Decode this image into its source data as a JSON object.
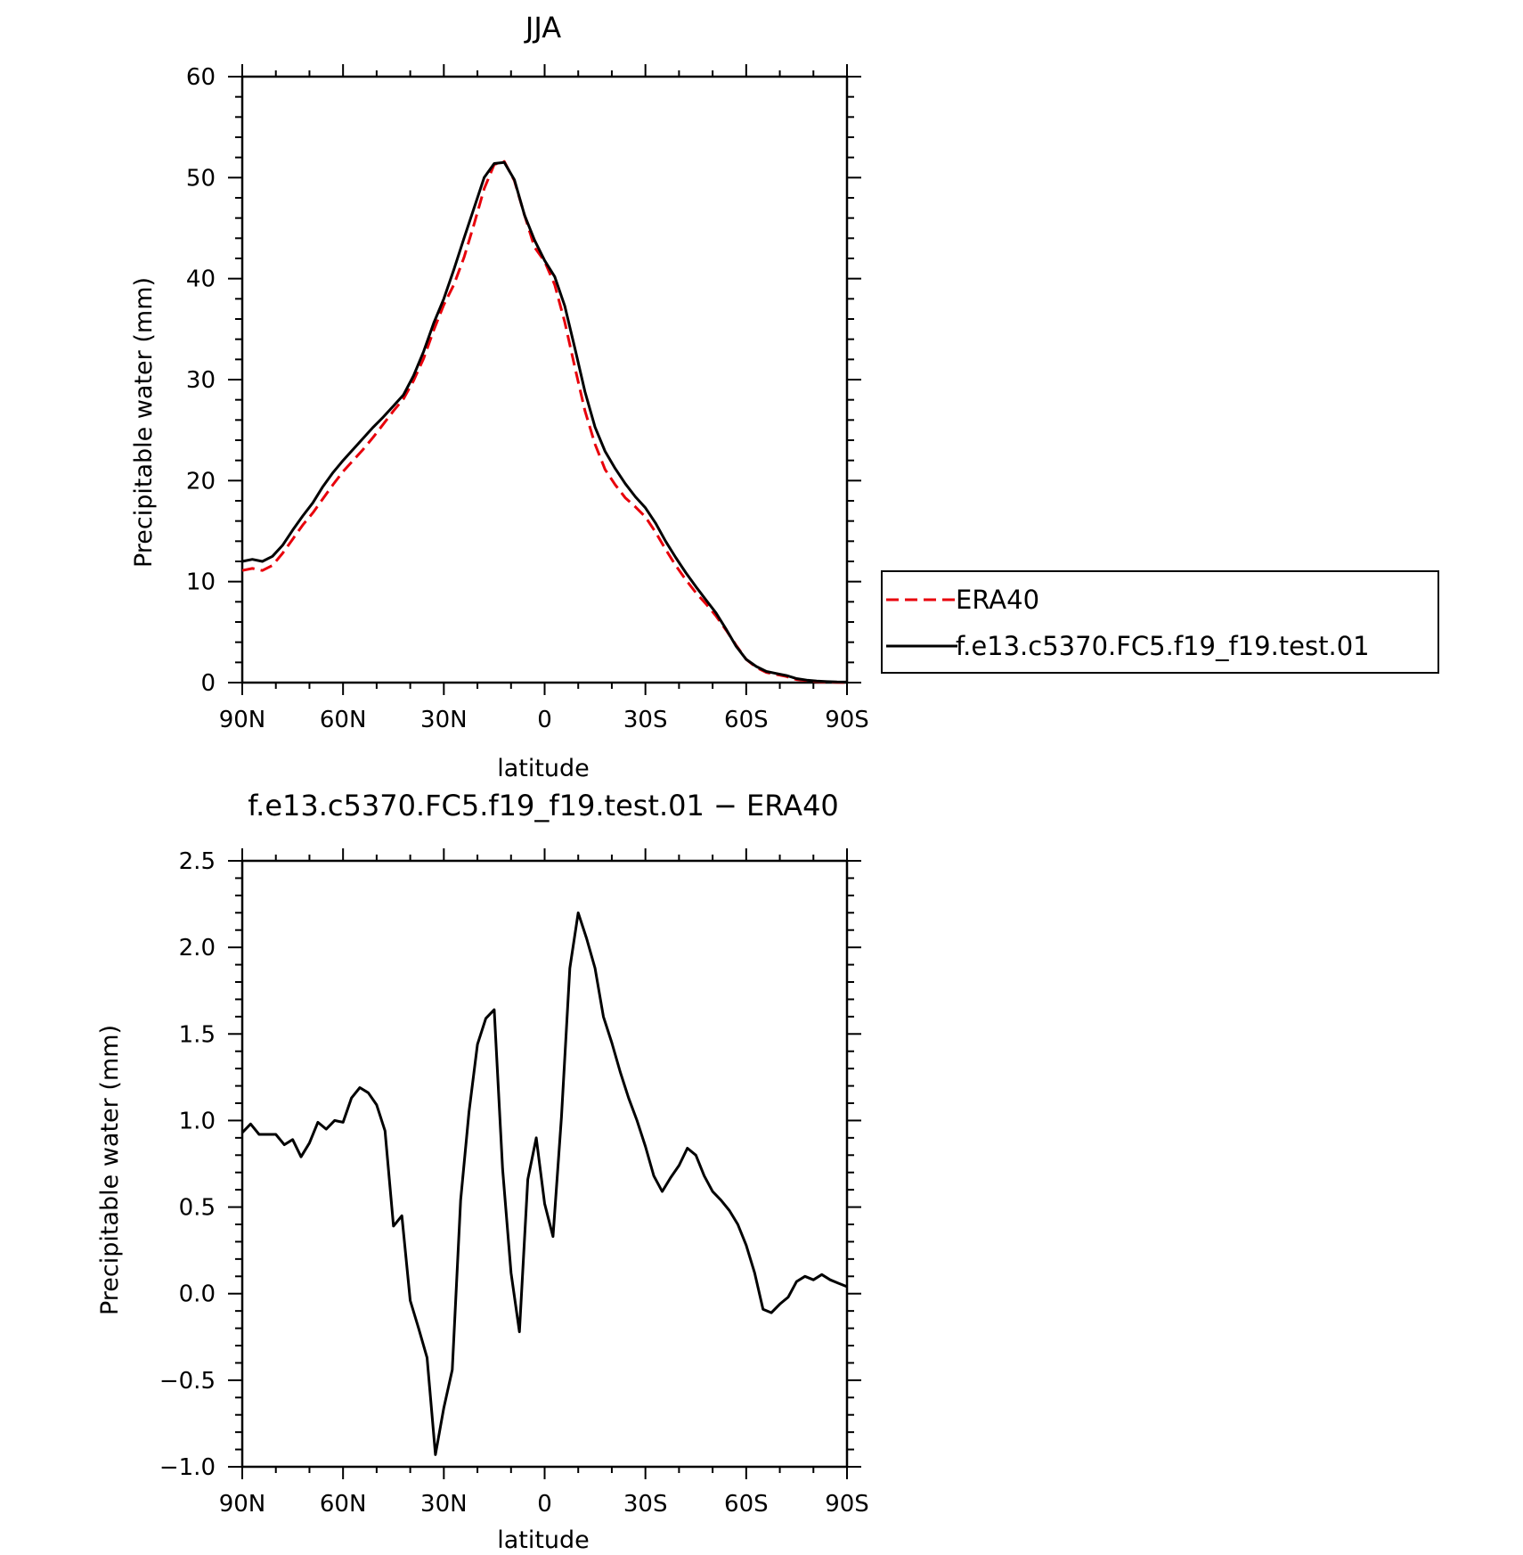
{
  "chart_data": [
    {
      "type": "line",
      "title": "JJA",
      "xlabel": "latitude",
      "ylabel": "Precipitable water (mm)",
      "xlim": [
        90,
        -90
      ],
      "ylim": [
        0,
        60
      ],
      "xticks": [
        90,
        60,
        30,
        0,
        -30,
        -60,
        -90
      ],
      "xtick_labels": [
        "90N",
        "60N",
        "30N",
        "0",
        "30S",
        "60S",
        "90S"
      ],
      "yticks": [
        0,
        10,
        20,
        30,
        40,
        50,
        60
      ],
      "ytick_labels": [
        "0",
        "10",
        "20",
        "30",
        "40",
        "50",
        "60"
      ],
      "grid": false,
      "legend_position": "right",
      "series": [
        {
          "name": "ERA40",
          "color": "#e8000b",
          "dash": "dashed",
          "x": [
            90,
            87,
            84,
            81,
            78,
            75,
            72,
            69,
            66,
            63,
            60,
            57,
            54,
            51,
            48,
            45,
            42,
            39,
            36,
            33,
            30,
            27,
            24,
            21,
            18,
            15,
            12,
            9,
            6,
            3,
            0,
            -3,
            -6,
            -9,
            -12,
            -15,
            -18,
            -21,
            -24,
            -27,
            -30,
            -33,
            -36,
            -39,
            -42,
            -45,
            -48,
            -51,
            -54,
            -57,
            -60,
            -63,
            -66,
            -69,
            -72,
            -75,
            -78,
            -81,
            -84,
            -87,
            -90
          ],
          "y": [
            11.1,
            11.3,
            11.1,
            11.6,
            12.8,
            14.2,
            15.6,
            16.8,
            18.2,
            19.6,
            20.9,
            22.0,
            23.1,
            24.3,
            25.6,
            26.9,
            28.1,
            29.9,
            32.1,
            34.9,
            37.4,
            39.4,
            42.1,
            45.4,
            48.9,
            51.3,
            51.6,
            49.7,
            46.3,
            43.1,
            41.7,
            39.4,
            35.7,
            31.2,
            26.9,
            23.6,
            21.1,
            19.6,
            18.3,
            17.4,
            16.4,
            14.9,
            13.2,
            11.6,
            10.2,
            8.9,
            7.8,
            6.6,
            5.2,
            3.7,
            2.3,
            1.5,
            1.0,
            0.8,
            0.6,
            0.3,
            0.2,
            0.1,
            0.05,
            0.03,
            0.01
          ]
        },
        {
          "name": "f.e13.c5370.FC5.f19_f19.test.01",
          "color": "#000000",
          "dash": "solid",
          "x": [
            90,
            87,
            84,
            81,
            78,
            75,
            72,
            69,
            66,
            63,
            60,
            57,
            54,
            51,
            48,
            45,
            42,
            39,
            36,
            33,
            30,
            27,
            24,
            21,
            18,
            15,
            12,
            9,
            6,
            3,
            0,
            -3,
            -6,
            -9,
            -12,
            -15,
            -18,
            -21,
            -24,
            -27,
            -30,
            -33,
            -36,
            -39,
            -42,
            -45,
            -48,
            -51,
            -54,
            -57,
            -60,
            -63,
            -66,
            -69,
            -72,
            -75,
            -78,
            -81,
            -84,
            -87,
            -90
          ],
          "y": [
            12.0,
            12.2,
            12.0,
            12.5,
            13.6,
            15.1,
            16.5,
            17.8,
            19.4,
            20.8,
            22.0,
            23.1,
            24.2,
            25.3,
            26.3,
            27.4,
            28.5,
            30.4,
            32.8,
            35.6,
            38.0,
            40.9,
            44.0,
            47.0,
            50.0,
            51.4,
            51.5,
            49.8,
            46.3,
            43.8,
            41.8,
            40.2,
            37.3,
            33.1,
            28.8,
            25.3,
            22.9,
            21.2,
            19.7,
            18.4,
            17.3,
            15.8,
            14.0,
            12.4,
            10.9,
            9.5,
            8.2,
            6.9,
            5.3,
            3.6,
            2.3,
            1.6,
            1.1,
            0.9,
            0.7,
            0.4,
            0.25,
            0.15,
            0.1,
            0.06,
            0.05
          ]
        }
      ]
    },
    {
      "type": "line",
      "title": "f.e13.c5370.FC5.f19_f19.test.01 − ERA40",
      "xlabel": "latitude",
      "ylabel": "Precipitable water (mm)",
      "xlim": [
        90,
        -90
      ],
      "ylim": [
        -1.0,
        2.5
      ],
      "xticks": [
        90,
        60,
        30,
        0,
        -30,
        -60,
        -90
      ],
      "xtick_labels": [
        "90N",
        "60N",
        "30N",
        "0",
        "30S",
        "60S",
        "90S"
      ],
      "yticks": [
        -1.0,
        -0.5,
        0.0,
        0.5,
        1.0,
        1.5,
        2.0,
        2.5
      ],
      "ytick_labels": [
        "−1.0",
        "−0.5",
        "0.0",
        "0.5",
        "1.0",
        "1.5",
        "2.0",
        "2.5"
      ],
      "grid": false,
      "series": [
        {
          "color": "#000000",
          "dash": "solid",
          "x": [
            90,
            87.5,
            85,
            82.5,
            80,
            77.5,
            75,
            72.5,
            70,
            67.5,
            65,
            62.5,
            60,
            57.5,
            55,
            52.5,
            50,
            47.5,
            45,
            42.5,
            40,
            37.5,
            35,
            32.5,
            30,
            27.5,
            25,
            22.5,
            20,
            17.5,
            15,
            12.5,
            10,
            7.5,
            5,
            2.5,
            0,
            -2.5,
            -5,
            -7.5,
            -10,
            -12.5,
            -15,
            -17.5,
            -20,
            -22.5,
            -25,
            -27.5,
            -30,
            -32.5,
            -35,
            -37.5,
            -40,
            -42.5,
            -45,
            -47.5,
            -50,
            -52.5,
            -55,
            -57.5,
            -60,
            -62.5,
            -65,
            -67.5,
            -70,
            -72.5,
            -75,
            -77.5,
            -80,
            -82.5,
            -85,
            -87.5,
            -90
          ],
          "y": [
            0.93,
            0.98,
            0.92,
            0.92,
            0.92,
            0.86,
            0.89,
            0.79,
            0.87,
            0.99,
            0.95,
            1.0,
            0.99,
            1.13,
            1.19,
            1.16,
            1.09,
            0.94,
            0.39,
            0.45,
            -0.04,
            -0.2,
            -0.37,
            -0.93,
            -0.66,
            -0.44,
            0.54,
            1.05,
            1.44,
            1.59,
            1.64,
            0.72,
            0.12,
            -0.22,
            0.66,
            0.9,
            0.52,
            0.33,
            1.02,
            1.88,
            2.2,
            2.05,
            1.88,
            1.6,
            1.45,
            1.28,
            1.13,
            1.0,
            0.85,
            0.68,
            0.59,
            0.67,
            0.74,
            0.84,
            0.8,
            0.68,
            0.59,
            0.54,
            0.48,
            0.4,
            0.28,
            0.12,
            -0.09,
            -0.11,
            -0.06,
            -0.02,
            0.07,
            0.1,
            0.08,
            0.11,
            0.08,
            0.06,
            0.04
          ]
        }
      ]
    }
  ]
}
